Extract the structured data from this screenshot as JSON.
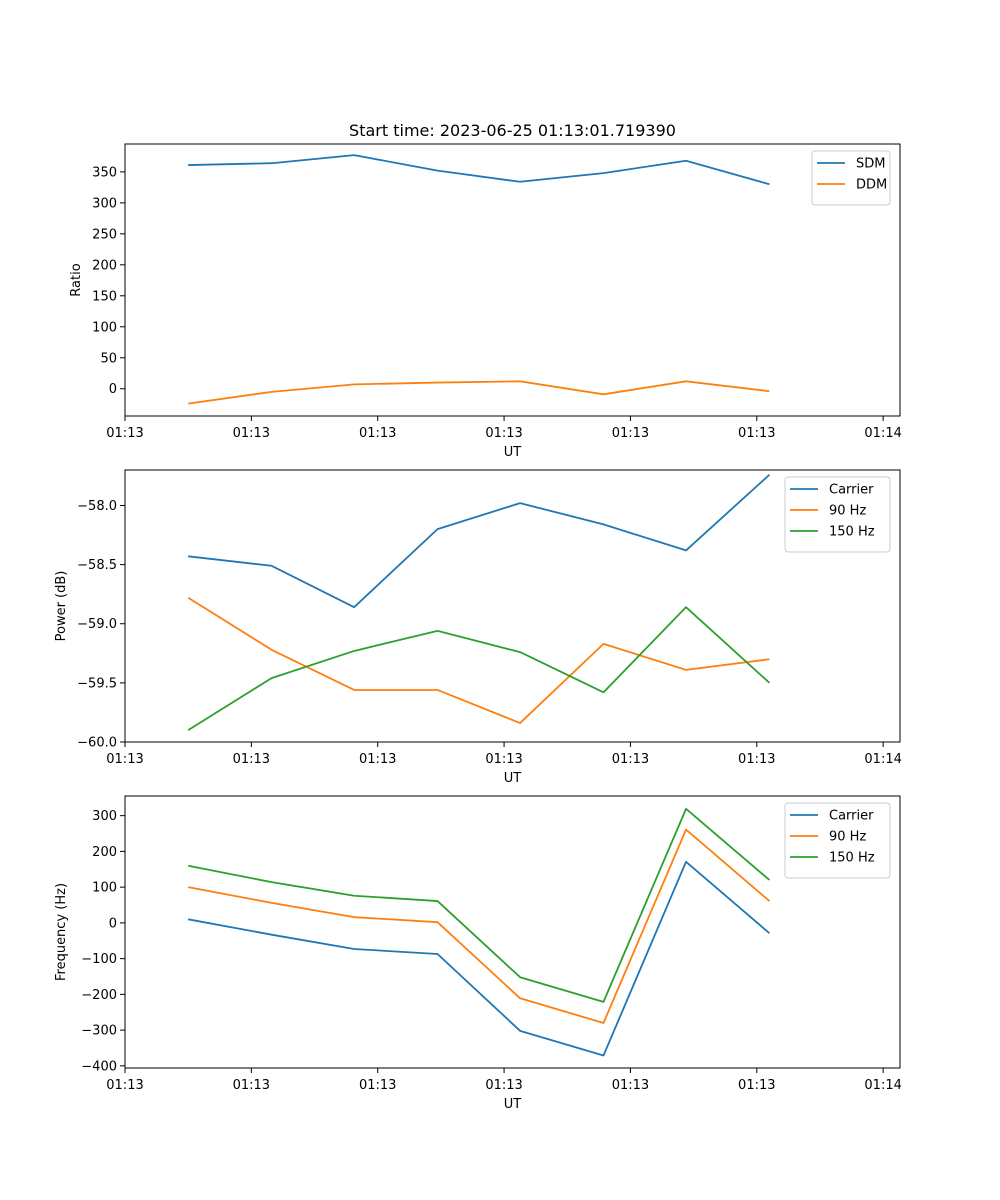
{
  "chart_data": [
    {
      "type": "line",
      "title": "Start time: 2023-06-25 01:13:01.719390",
      "xlabel": "UT",
      "ylabel": "Ratio",
      "xlim": [
        0,
        9.2
      ],
      "ylim": [
        -44,
        395
      ],
      "x_tick_positions": [
        0,
        1.5,
        3,
        4.5,
        6,
        7.5,
        9
      ],
      "x_tick_labels": [
        "01:13",
        "01:13",
        "01:13",
        "01:13",
        "01:13",
        "01:13",
        "01:14"
      ],
      "y_ticks": [
        0,
        50,
        100,
        150,
        200,
        250,
        300,
        350
      ],
      "y_tick_labels": [
        "0",
        "50",
        "100",
        "150",
        "200",
        "250",
        "300",
        "350"
      ],
      "grid": false,
      "legend": "top-right",
      "series": [
        {
          "name": "SDM",
          "color": "#1f77b4",
          "x": [
            0.75,
            1.74,
            2.72,
            3.71,
            4.69,
            5.68,
            6.66,
            7.65
          ],
          "values": [
            361,
            364,
            377,
            352,
            334,
            348,
            368,
            330
          ]
        },
        {
          "name": "DDM",
          "color": "#ff7f0e",
          "x": [
            0.75,
            1.74,
            2.72,
            3.71,
            4.69,
            5.68,
            6.66,
            7.65
          ],
          "values": [
            -24,
            -5,
            7,
            10,
            12,
            -9,
            12,
            -4
          ]
        }
      ]
    },
    {
      "type": "line",
      "title": "",
      "xlabel": "UT",
      "ylabel": "Power (dB)",
      "xlim": [
        0,
        9.2
      ],
      "ylim": [
        -60.0,
        -57.7
      ],
      "x_tick_positions": [
        0,
        1.5,
        3,
        4.5,
        6,
        7.5,
        9
      ],
      "x_tick_labels": [
        "01:13",
        "01:13",
        "01:13",
        "01:13",
        "01:13",
        "01:13",
        "01:14"
      ],
      "y_ticks": [
        -60.0,
        -59.5,
        -59.0,
        -58.5,
        -58.0
      ],
      "y_tick_labels": [
        "−60.0",
        "−59.5",
        "−59.0",
        "−58.5",
        "−58.0"
      ],
      "grid": false,
      "legend": "top-right",
      "series": [
        {
          "name": "Carrier",
          "color": "#1f77b4",
          "x": [
            0.75,
            1.74,
            2.72,
            3.71,
            4.69,
            5.68,
            6.66,
            7.65
          ],
          "values": [
            -58.43,
            -58.51,
            -58.86,
            -58.2,
            -57.98,
            -58.16,
            -58.38,
            -57.74
          ]
        },
        {
          "name": "90 Hz",
          "color": "#ff7f0e",
          "x": [
            0.75,
            1.74,
            2.72,
            3.71,
            4.69,
            5.68,
            6.66,
            7.65
          ],
          "values": [
            -58.78,
            -59.22,
            -59.56,
            -59.56,
            -59.84,
            -59.17,
            -59.39,
            -59.3
          ]
        },
        {
          "name": "150 Hz",
          "color": "#2ca02c",
          "x": [
            0.75,
            1.74,
            2.72,
            3.71,
            4.69,
            5.68,
            6.66,
            7.65
          ],
          "values": [
            -59.9,
            -59.46,
            -59.23,
            -59.06,
            -59.24,
            -59.58,
            -58.86,
            -59.5
          ]
        }
      ]
    },
    {
      "type": "line",
      "title": "",
      "xlabel": "UT",
      "ylabel": "Frequency (Hz)",
      "xlim": [
        0,
        9.2
      ],
      "ylim": [
        -406,
        355
      ],
      "x_tick_positions": [
        0,
        1.5,
        3,
        4.5,
        6,
        7.5,
        9
      ],
      "x_tick_labels": [
        "01:13",
        "01:13",
        "01:13",
        "01:13",
        "01:13",
        "01:13",
        "01:14"
      ],
      "y_ticks": [
        -400,
        -300,
        -200,
        -100,
        0,
        100,
        200,
        300
      ],
      "y_tick_labels": [
        "−400",
        "−300",
        "−200",
        "−100",
        "0",
        "100",
        "200",
        "300"
      ],
      "grid": false,
      "legend": "top-right",
      "series": [
        {
          "name": "Carrier",
          "color": "#1f77b4",
          "x": [
            0.75,
            1.74,
            2.72,
            3.71,
            4.69,
            5.68,
            6.66,
            7.65
          ],
          "values": [
            10,
            -33,
            -73,
            -87,
            -302,
            -371,
            171,
            -29
          ]
        },
        {
          "name": "90 Hz",
          "color": "#ff7f0e",
          "x": [
            0.75,
            1.74,
            2.72,
            3.71,
            4.69,
            5.68,
            6.66,
            7.65
          ],
          "values": [
            100,
            56,
            16,
            2,
            -211,
            -280,
            261,
            61
          ]
        },
        {
          "name": "150 Hz",
          "color": "#2ca02c",
          "x": [
            0.75,
            1.74,
            2.72,
            3.71,
            4.69,
            5.68,
            6.66,
            7.65
          ],
          "values": [
            160,
            114,
            76,
            61,
            -152,
            -221,
            319,
            120
          ]
        }
      ]
    }
  ]
}
